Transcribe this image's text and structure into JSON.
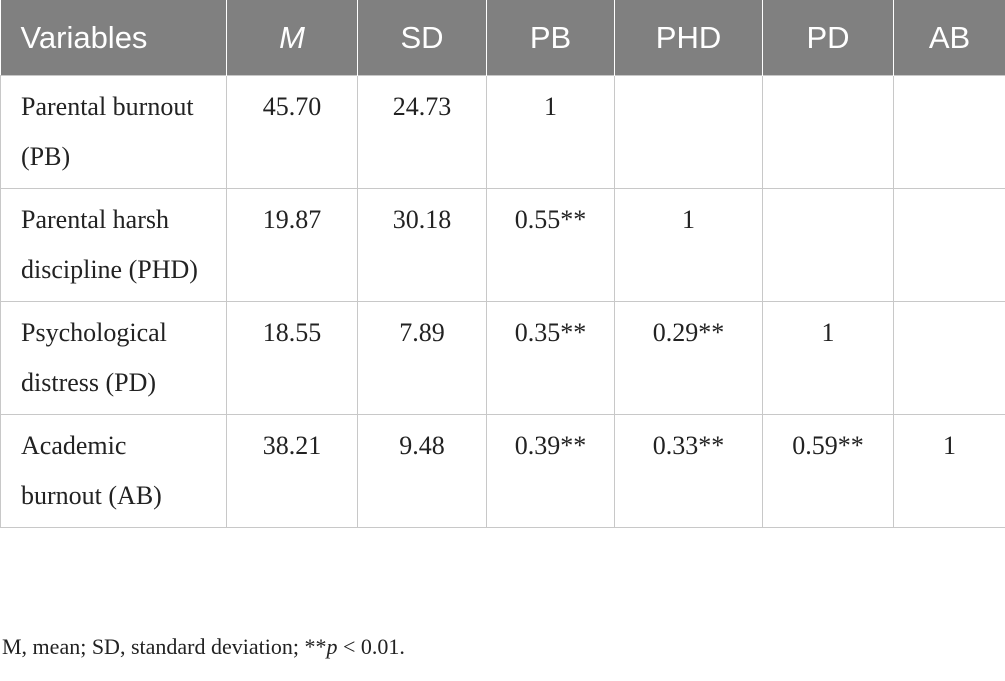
{
  "table": {
    "header": [
      "Variables",
      "M",
      "SD",
      "PB",
      "PHD",
      "PD",
      "AB"
    ],
    "rows": [
      [
        "Parental burnout (PB)",
        "45.70",
        "24.73",
        "1",
        null,
        null,
        null
      ],
      [
        "Parental harsh discipline (PHD)",
        "19.87",
        "30.18",
        "0.55**",
        "1",
        null,
        null
      ],
      [
        "Psychological distress (PD)",
        "18.55",
        "7.89",
        "0.35**",
        "0.29**",
        "1",
        null
      ],
      [
        "Academic burnout (AB)",
        "38.21",
        "9.48",
        "0.39**",
        "0.33**",
        "0.59**",
        "1"
      ]
    ]
  },
  "footnote": [
    "M, mean; SD, standard deviation; **",
    "p",
    " < 0.01."
  ]
}
